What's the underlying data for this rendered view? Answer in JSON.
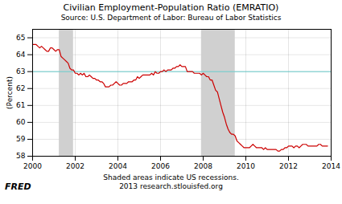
{
  "chart_data": {
    "type": "line",
    "title": "Civilian Employment-Population Ratio (EMRATIO)",
    "subtitle": "Source:  U.S. Department of Labor: Bureau of Labor Statistics",
    "ylabel": "(Percent)",
    "annotations": [
      "Shaded areas indicate US recessions.",
      "2013 research.stlouisfed.org",
      "FRED"
    ],
    "xlim": [
      2000.0,
      2014.0
    ],
    "ylim": [
      58.0,
      65.5
    ],
    "xticks": [
      2000,
      2002,
      2004,
      2006,
      2008,
      2010,
      2012,
      2014
    ],
    "yticks": [
      58,
      59,
      60,
      61,
      62,
      63,
      64,
      65
    ],
    "grid": true,
    "color": "#cc0000",
    "recession_bands": {
      "ranges": [
        [
          2001.25,
          2001.917
        ],
        [
          2007.917,
          2009.5
        ]
      ],
      "color": "#d0d0d0"
    },
    "reference_line": {
      "value": 63.0,
      "color": "#66cccc"
    },
    "x": [
      2000.0,
      2000.083,
      2000.167,
      2000.25,
      2000.333,
      2000.417,
      2000.5,
      2000.583,
      2000.667,
      2000.75,
      2000.833,
      2000.917,
      2001.0,
      2001.083,
      2001.167,
      2001.25,
      2001.333,
      2001.417,
      2001.5,
      2001.583,
      2001.667,
      2001.75,
      2001.833,
      2001.917,
      2002.0,
      2002.083,
      2002.167,
      2002.25,
      2002.333,
      2002.417,
      2002.5,
      2002.583,
      2002.667,
      2002.75,
      2002.833,
      2002.917,
      2003.0,
      2003.083,
      2003.167,
      2003.25,
      2003.333,
      2003.417,
      2003.5,
      2003.583,
      2003.667,
      2003.75,
      2003.833,
      2003.917,
      2004.0,
      2004.083,
      2004.167,
      2004.25,
      2004.333,
      2004.417,
      2004.5,
      2004.583,
      2004.667,
      2004.75,
      2004.833,
      2004.917,
      2005.0,
      2005.083,
      2005.167,
      2005.25,
      2005.333,
      2005.417,
      2005.5,
      2005.583,
      2005.667,
      2005.75,
      2005.833,
      2005.917,
      2006.0,
      2006.083,
      2006.167,
      2006.25,
      2006.333,
      2006.417,
      2006.5,
      2006.583,
      2006.667,
      2006.75,
      2006.833,
      2006.917,
      2007.0,
      2007.083,
      2007.167,
      2007.25,
      2007.333,
      2007.417,
      2007.5,
      2007.583,
      2007.667,
      2007.75,
      2007.833,
      2007.917,
      2008.0,
      2008.083,
      2008.167,
      2008.25,
      2008.333,
      2008.417,
      2008.5,
      2008.583,
      2008.667,
      2008.75,
      2008.833,
      2008.917,
      2009.0,
      2009.083,
      2009.167,
      2009.25,
      2009.333,
      2009.417,
      2009.5,
      2009.583,
      2009.667,
      2009.75,
      2009.833,
      2009.917,
      2010.0,
      2010.083,
      2010.167,
      2010.25,
      2010.333,
      2010.417,
      2010.5,
      2010.583,
      2010.667,
      2010.75,
      2010.833,
      2010.917,
      2011.0,
      2011.083,
      2011.167,
      2011.25,
      2011.333,
      2011.417,
      2011.5,
      2011.583,
      2011.667,
      2011.75,
      2011.833,
      2011.917,
      2012.0,
      2012.083,
      2012.167,
      2012.25,
      2012.333,
      2012.417,
      2012.5,
      2012.583,
      2012.667,
      2012.75,
      2012.833,
      2012.917,
      2013.0,
      2013.083,
      2013.167,
      2013.25,
      2013.333,
      2013.417,
      2013.5,
      2013.583,
      2013.667,
      2013.75,
      2013.833
    ],
    "values": [
      64.6,
      64.6,
      64.6,
      64.5,
      64.4,
      64.5,
      64.4,
      64.3,
      64.2,
      64.2,
      64.4,
      64.4,
      64.3,
      64.2,
      64.3,
      64.3,
      63.9,
      63.8,
      63.7,
      63.6,
      63.5,
      63.2,
      63.1,
      63.1,
      62.9,
      62.9,
      62.8,
      62.9,
      62.8,
      62.9,
      62.7,
      62.7,
      62.8,
      62.7,
      62.6,
      62.6,
      62.5,
      62.5,
      62.4,
      62.4,
      62.3,
      62.1,
      62.1,
      62.1,
      62.2,
      62.2,
      62.3,
      62.4,
      62.3,
      62.2,
      62.2,
      62.3,
      62.3,
      62.3,
      62.4,
      62.4,
      62.4,
      62.5,
      62.5,
      62.7,
      62.6,
      62.7,
      62.8,
      62.8,
      62.8,
      62.8,
      62.8,
      62.9,
      62.8,
      63.0,
      62.9,
      62.9,
      63.0,
      63.0,
      63.1,
      63.0,
      63.1,
      63.1,
      63.1,
      63.2,
      63.2,
      63.3,
      63.3,
      63.4,
      63.3,
      63.3,
      63.3,
      63.0,
      63.0,
      63.0,
      63.0,
      62.9,
      62.9,
      62.9,
      62.9,
      62.8,
      62.9,
      62.8,
      62.7,
      62.7,
      62.5,
      62.5,
      62.2,
      61.9,
      61.8,
      61.4,
      61.0,
      60.6,
      60.3,
      59.9,
      59.6,
      59.4,
      59.3,
      59.3,
      59.2,
      58.9,
      58.8,
      58.7,
      58.6,
      58.5,
      58.5,
      58.5,
      58.5,
      58.6,
      58.7,
      58.6,
      58.5,
      58.5,
      58.5,
      58.5,
      58.4,
      58.5,
      58.4,
      58.4,
      58.4,
      58.4,
      58.4,
      58.4,
      58.3,
      58.3,
      58.4,
      58.4,
      58.5,
      58.5,
      58.6,
      58.6,
      58.6,
      58.5,
      58.6,
      58.6,
      58.5,
      58.6,
      58.7,
      58.7,
      58.7,
      58.6,
      58.6,
      58.6,
      58.6,
      58.6,
      58.6,
      58.7,
      58.7,
      58.6,
      58.6,
      58.6,
      58.6
    ]
  }
}
